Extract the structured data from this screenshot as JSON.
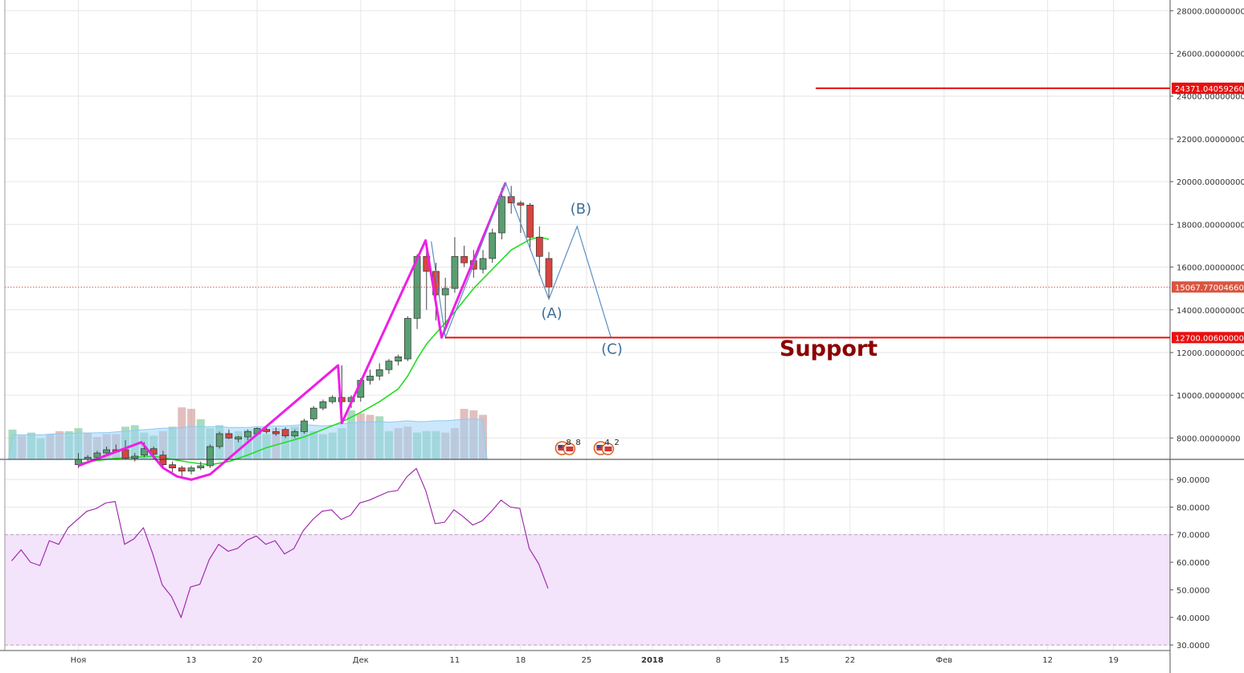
{
  "chart_data": [
    {
      "type": "candlestick",
      "panel": "price",
      "y_range": [
        7000,
        28500
      ],
      "y_ticks": [
        "28000.00000000",
        "26000.00000000",
        "24000.00000000",
        "22000.00000000",
        "20000.00000000",
        "18000.00000000",
        "16000.00000000",
        "14000.00000000",
        "12000.00000000",
        "10000.00000000",
        "8000.00000000"
      ],
      "y_tick_values": [
        28000,
        26000,
        24000,
        22000,
        20000,
        18000,
        16000,
        14000,
        12000,
        10000,
        8000
      ],
      "x_ticks": [
        {
          "label": "Ноя",
          "day": 0,
          "bold": false
        },
        {
          "label": "13",
          "day": 12,
          "bold": false
        },
        {
          "label": "20",
          "day": 19,
          "bold": false
        },
        {
          "label": "Дек",
          "day": 30,
          "bold": false
        },
        {
          "label": "11",
          "day": 40,
          "bold": false
        },
        {
          "label": "18",
          "day": 47,
          "bold": false
        },
        {
          "label": "25",
          "day": 54,
          "bold": false
        },
        {
          "label": "2018",
          "day": 61,
          "bold": true
        },
        {
          "label": "8",
          "day": 68,
          "bold": false
        },
        {
          "label": "15",
          "day": 75,
          "bold": false
        },
        {
          "label": "22",
          "day": 82,
          "bold": false
        },
        {
          "label": "Фев",
          "day": 92,
          "bold": false
        },
        {
          "label": "12",
          "day": 103,
          "bold": false
        },
        {
          "label": "19",
          "day": 110,
          "bold": false
        }
      ],
      "candles": [
        {
          "d": 0,
          "o": 6750,
          "h": 7300,
          "l": 6600,
          "c": 7000
        },
        {
          "d": 1,
          "o": 7000,
          "h": 7200,
          "l": 6900,
          "c": 7100
        },
        {
          "d": 2,
          "o": 7100,
          "h": 7400,
          "l": 7000,
          "c": 7300
        },
        {
          "d": 3,
          "o": 7300,
          "h": 7600,
          "l": 7200,
          "c": 7450
        },
        {
          "d": 4,
          "o": 7450,
          "h": 7700,
          "l": 7300,
          "c": 7350
        },
        {
          "d": 5,
          "o": 7450,
          "h": 7900,
          "l": 7000,
          "c": 7050
        },
        {
          "d": 6,
          "o": 7050,
          "h": 7300,
          "l": 6900,
          "c": 7150
        },
        {
          "d": 7,
          "o": 7200,
          "h": 7800,
          "l": 7100,
          "c": 7500
        },
        {
          "d": 8,
          "o": 7500,
          "h": 7600,
          "l": 7000,
          "c": 7250
        },
        {
          "d": 9,
          "o": 7200,
          "h": 7400,
          "l": 6600,
          "c": 6750
        },
        {
          "d": 10,
          "o": 6750,
          "h": 6900,
          "l": 6400,
          "c": 6600
        },
        {
          "d": 11,
          "o": 6600,
          "h": 6700,
          "l": 6200,
          "c": 6450
        },
        {
          "d": 12,
          "o": 6450,
          "h": 6700,
          "l": 6300,
          "c": 6600
        },
        {
          "d": 13,
          "o": 6600,
          "h": 6900,
          "l": 6500,
          "c": 6700
        },
        {
          "d": 14,
          "o": 6700,
          "h": 7700,
          "l": 6600,
          "c": 7600
        },
        {
          "d": 15,
          "o": 7600,
          "h": 8300,
          "l": 7500,
          "c": 8200
        },
        {
          "d": 16,
          "o": 8200,
          "h": 8400,
          "l": 7950,
          "c": 8000
        },
        {
          "d": 17,
          "o": 7950,
          "h": 8100,
          "l": 7800,
          "c": 8050
        },
        {
          "d": 18,
          "o": 8050,
          "h": 8400,
          "l": 7900,
          "c": 8300
        },
        {
          "d": 19,
          "o": 8200,
          "h": 8500,
          "l": 8100,
          "c": 8450
        },
        {
          "d": 20,
          "o": 8400,
          "h": 8600,
          "l": 8200,
          "c": 8300
        },
        {
          "d": 21,
          "o": 8300,
          "h": 8500,
          "l": 8100,
          "c": 8200
        },
        {
          "d": 22,
          "o": 8400,
          "h": 8500,
          "l": 8000,
          "c": 8100
        },
        {
          "d": 23,
          "o": 8100,
          "h": 8400,
          "l": 8000,
          "c": 8300
        },
        {
          "d": 24,
          "o": 8300,
          "h": 8900,
          "l": 8200,
          "c": 8800
        },
        {
          "d": 25,
          "o": 8900,
          "h": 9500,
          "l": 8800,
          "c": 9400
        },
        {
          "d": 26,
          "o": 9400,
          "h": 9800,
          "l": 9300,
          "c": 9700
        },
        {
          "d": 27,
          "o": 9700,
          "h": 10000,
          "l": 9600,
          "c": 9900
        },
        {
          "d": 28,
          "o": 9900,
          "h": 11400,
          "l": 8700,
          "c": 9700
        },
        {
          "d": 29,
          "o": 9700,
          "h": 10000,
          "l": 9400,
          "c": 9900
        },
        {
          "d": 30,
          "o": 9900,
          "h": 10800,
          "l": 9700,
          "c": 10700
        },
        {
          "d": 31,
          "o": 10700,
          "h": 11200,
          "l": 10500,
          "c": 10900
        },
        {
          "d": 32,
          "o": 10900,
          "h": 11500,
          "l": 10700,
          "c": 11200
        },
        {
          "d": 33,
          "o": 11200,
          "h": 11700,
          "l": 11000,
          "c": 11600
        },
        {
          "d": 34,
          "o": 11600,
          "h": 11900,
          "l": 11400,
          "c": 11800
        },
        {
          "d": 35,
          "o": 11700,
          "h": 13700,
          "l": 11600,
          "c": 13600
        },
        {
          "d": 36,
          "o": 13600,
          "h": 16600,
          "l": 13100,
          "c": 16500
        },
        {
          "d": 37,
          "o": 16500,
          "h": 17200,
          "l": 14000,
          "c": 15800
        },
        {
          "d": 38,
          "o": 15800,
          "h": 16200,
          "l": 13500,
          "c": 14700
        },
        {
          "d": 39,
          "o": 14700,
          "h": 15500,
          "l": 13000,
          "c": 15000
        },
        {
          "d": 40,
          "o": 15000,
          "h": 17400,
          "l": 14800,
          "c": 16500
        },
        {
          "d": 41,
          "o": 16500,
          "h": 17000,
          "l": 16000,
          "c": 16200
        },
        {
          "d": 42,
          "o": 16300,
          "h": 16800,
          "l": 15500,
          "c": 15900
        },
        {
          "d": 43,
          "o": 15900,
          "h": 16800,
          "l": 15700,
          "c": 16400
        },
        {
          "d": 44,
          "o": 16400,
          "h": 17800,
          "l": 16200,
          "c": 17600
        },
        {
          "d": 45,
          "o": 17600,
          "h": 19700,
          "l": 17300,
          "c": 19300
        },
        {
          "d": 46,
          "o": 19300,
          "h": 19800,
          "l": 18500,
          "c": 19000
        },
        {
          "d": 47,
          "o": 19000,
          "h": 19100,
          "l": 17600,
          "c": 18900
        },
        {
          "d": 48,
          "o": 18900,
          "h": 19000,
          "l": 16800,
          "c": 17400
        },
        {
          "d": 49,
          "o": 17400,
          "h": 17900,
          "l": 15600,
          "c": 16500
        },
        {
          "d": 50,
          "o": 16400,
          "h": 16700,
          "l": 14500,
          "c": 15068
        }
      ],
      "ma": [
        {
          "d": 0,
          "v": 6800
        },
        {
          "d": 2,
          "v": 6950
        },
        {
          "d": 4,
          "v": 7050
        },
        {
          "d": 6,
          "v": 7100
        },
        {
          "d": 8,
          "v": 7150
        },
        {
          "d": 10,
          "v": 7000
        },
        {
          "d": 12,
          "v": 6850
        },
        {
          "d": 14,
          "v": 6750
        },
        {
          "d": 16,
          "v": 6900
        },
        {
          "d": 18,
          "v": 7200
        },
        {
          "d": 20,
          "v": 7550
        },
        {
          "d": 22,
          "v": 7800
        },
        {
          "d": 24,
          "v": 8050
        },
        {
          "d": 26,
          "v": 8400
        },
        {
          "d": 28,
          "v": 8750
        },
        {
          "d": 30,
          "v": 9200
        },
        {
          "d": 32,
          "v": 9700
        },
        {
          "d": 34,
          "v": 10300
        },
        {
          "d": 35,
          "v": 10900
        },
        {
          "d": 36,
          "v": 11700
        },
        {
          "d": 37,
          "v": 12400
        },
        {
          "d": 38,
          "v": 12900
        },
        {
          "d": 40,
          "v": 13900
        },
        {
          "d": 42,
          "v": 15000
        },
        {
          "d": 44,
          "v": 15900
        },
        {
          "d": 46,
          "v": 16800
        },
        {
          "d": 48,
          "v": 17300
        },
        {
          "d": 49,
          "v": 17400
        },
        {
          "d": 50,
          "v": 17300
        }
      ],
      "volumes": [
        2000,
        1600,
        1800,
        1400,
        1700,
        1900,
        1900,
        2100,
        1800,
        1500,
        1700,
        1700,
        2200,
        2300,
        1800,
        1600,
        1900,
        2200,
        3500,
        3400,
        2700,
        2100,
        2300,
        1800,
        1900,
        2000,
        1900,
        1700,
        2100,
        1700,
        2200,
        2100,
        1900,
        1700,
        1800,
        2100,
        3300,
        3100,
        3000,
        2900,
        1900,
        2100,
        2200,
        1800,
        1900,
        1900,
        1800,
        2100,
        3400,
        3300,
        3000
      ],
      "volume_rising": [
        true,
        false,
        true,
        true,
        false,
        false,
        true,
        true,
        false,
        false,
        false,
        false,
        true,
        true,
        true,
        true,
        false,
        true,
        false,
        false,
        true,
        true,
        true,
        false,
        true,
        true,
        true,
        true,
        false,
        true,
        true,
        true,
        true,
        true,
        true,
        true,
        true,
        false,
        false,
        true,
        true,
        false,
        false,
        true,
        true,
        true,
        false,
        false,
        false,
        false,
        false
      ],
      "vol_ma": [
        1650,
        1650,
        1650,
        1650,
        1700,
        1720,
        1750,
        1770,
        1780,
        1790,
        1800,
        1850,
        1900,
        1950,
        2000,
        2050,
        2100,
        2100,
        2150,
        2200,
        2200,
        2200,
        2200,
        2150,
        2150,
        2150,
        2200,
        2200,
        2250,
        2250,
        2300,
        2350,
        2300,
        2250,
        2300,
        2400,
        2450,
        2500,
        2500,
        2550,
        2500,
        2550,
        2600,
        2550,
        2550,
        2600,
        2600,
        2650,
        2700,
        2700,
        2700
      ],
      "elliott_path": [
        {
          "d": 37.5,
          "v": 17200
        },
        {
          "d": 39,
          "v": 12700
        },
        {
          "d": 45.4,
          "v": 19950
        },
        {
          "d": 50,
          "v": 14500
        },
        {
          "d": 53,
          "v": 17900
        },
        {
          "d": 56.6,
          "v": 12700
        }
      ],
      "magenta_path": [
        {
          "d": 0,
          "v": 6700
        },
        {
          "d": 6.7,
          "v": 7800
        },
        {
          "d": 9,
          "v": 6600
        },
        {
          "d": 10.5,
          "v": 6200
        },
        {
          "d": 12,
          "v": 6050
        },
        {
          "d": 14,
          "v": 6300
        },
        {
          "d": 27.6,
          "v": 11400
        },
        {
          "d": 28,
          "v": 8700
        },
        {
          "d": 36.9,
          "v": 17250
        },
        {
          "d": 38.6,
          "v": 12700
        },
        {
          "d": 45.4,
          "v": 19950
        }
      ],
      "wave_labels": [
        {
          "text": "(A)",
          "d": 50.3,
          "v": 13620
        },
        {
          "text": "(B)",
          "d": 53.4,
          "v": 18500
        },
        {
          "text": "(C)",
          "d": 56.7,
          "v": 11950
        }
      ],
      "support_level": 12700,
      "support_text": "Support",
      "support_tag": "12700.00600000",
      "resistance_level": 24371,
      "resistance_tag": "24371.04059260",
      "current_price": 15067.77,
      "current_tag": "15067.77004660",
      "events": [
        {
          "d": 51.4,
          "a": "8",
          "b": "8"
        },
        {
          "d": 55.5,
          "a": "4",
          "b": "2"
        }
      ]
    },
    {
      "type": "line",
      "panel": "rsi",
      "y_range": [
        28,
        97
      ],
      "y_ticks": [
        "90.0000",
        "80.0000",
        "70.0000",
        "60.0000",
        "50.0000",
        "40.0000",
        "30.0000"
      ],
      "y_tick_values": [
        90,
        80,
        70,
        60,
        50,
        40,
        30
      ],
      "band": [
        30,
        70
      ],
      "values": [
        60.5,
        64.5,
        60,
        58.8,
        67.8,
        66.5,
        72.5,
        75.5,
        78.5,
        79.5,
        81.5,
        82,
        66.5,
        68.5,
        72.5,
        63,
        51.8,
        47.5,
        40,
        51,
        52,
        61,
        66.5,
        64,
        65,
        68,
        69.5,
        66.5,
        67.8,
        63,
        65,
        71.5,
        75.5,
        78.5,
        79,
        75.5,
        77,
        81.5,
        82.5,
        84,
        85.5,
        86,
        91,
        94,
        86,
        74,
        74.5,
        79,
        76.5,
        73.5,
        75,
        78.5,
        82.5,
        80,
        79.5,
        65,
        59.5,
        50.5
      ]
    }
  ]
}
